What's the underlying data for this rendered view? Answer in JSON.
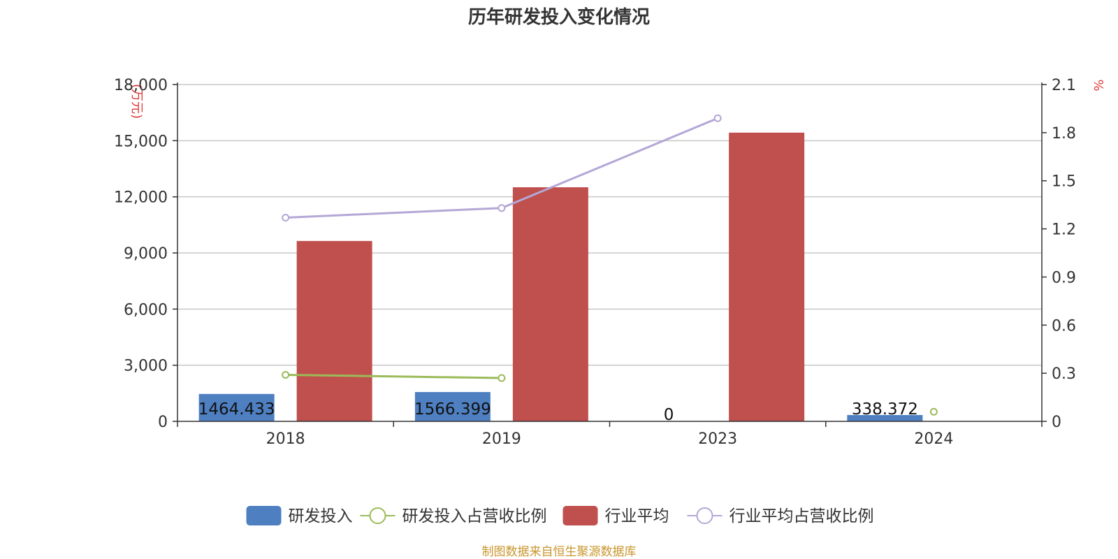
{
  "chart_data": {
    "type": "bar",
    "title": "历年研发投入变化情况",
    "categories": [
      "2018",
      "2019",
      "2023",
      "2024"
    ],
    "y_left": {
      "unit_label": "(万元)",
      "min": 0,
      "max": 18000,
      "ticks": [
        "0",
        "3,000",
        "6,000",
        "9,000",
        "12,000",
        "15,000",
        "18,000"
      ],
      "tick_values": [
        0,
        3000,
        6000,
        9000,
        12000,
        15000,
        18000
      ]
    },
    "y_right": {
      "unit_label": "%",
      "min": 0,
      "max": 2.1,
      "ticks": [
        "0",
        "0.3",
        "0.6",
        "0.9",
        "1.2",
        "1.5",
        "1.8",
        "2.1"
      ],
      "tick_values": [
        0,
        0.3,
        0.6,
        0.9,
        1.2,
        1.5,
        1.8,
        2.1
      ]
    },
    "grid": true,
    "legend_position": "bottom-center",
    "series": [
      {
        "name": "研发投入",
        "kind": "bar",
        "axis": "left",
        "color": "#4e7fc0",
        "values": [
          1464.433,
          1566.399,
          0,
          338.372
        ],
        "labels": [
          "1464.433",
          "1566.399",
          "0",
          "338.372"
        ]
      },
      {
        "name": "研发投入占营收比例",
        "kind": "line",
        "axis": "right",
        "color": "#9bbb59",
        "values": [
          0.29,
          0.27,
          null,
          0.06
        ]
      },
      {
        "name": "行业平均",
        "kind": "bar",
        "axis": "left",
        "color": "#c0504d",
        "values": [
          9640,
          12510,
          15430,
          null
        ]
      },
      {
        "name": "行业平均占营收比例",
        "kind": "line",
        "axis": "right",
        "color": "#b4a7d6",
        "values": [
          1.27,
          1.33,
          1.89,
          null
        ]
      }
    ]
  },
  "footer": {
    "source": "制图数据来自恒生聚源数据库"
  }
}
